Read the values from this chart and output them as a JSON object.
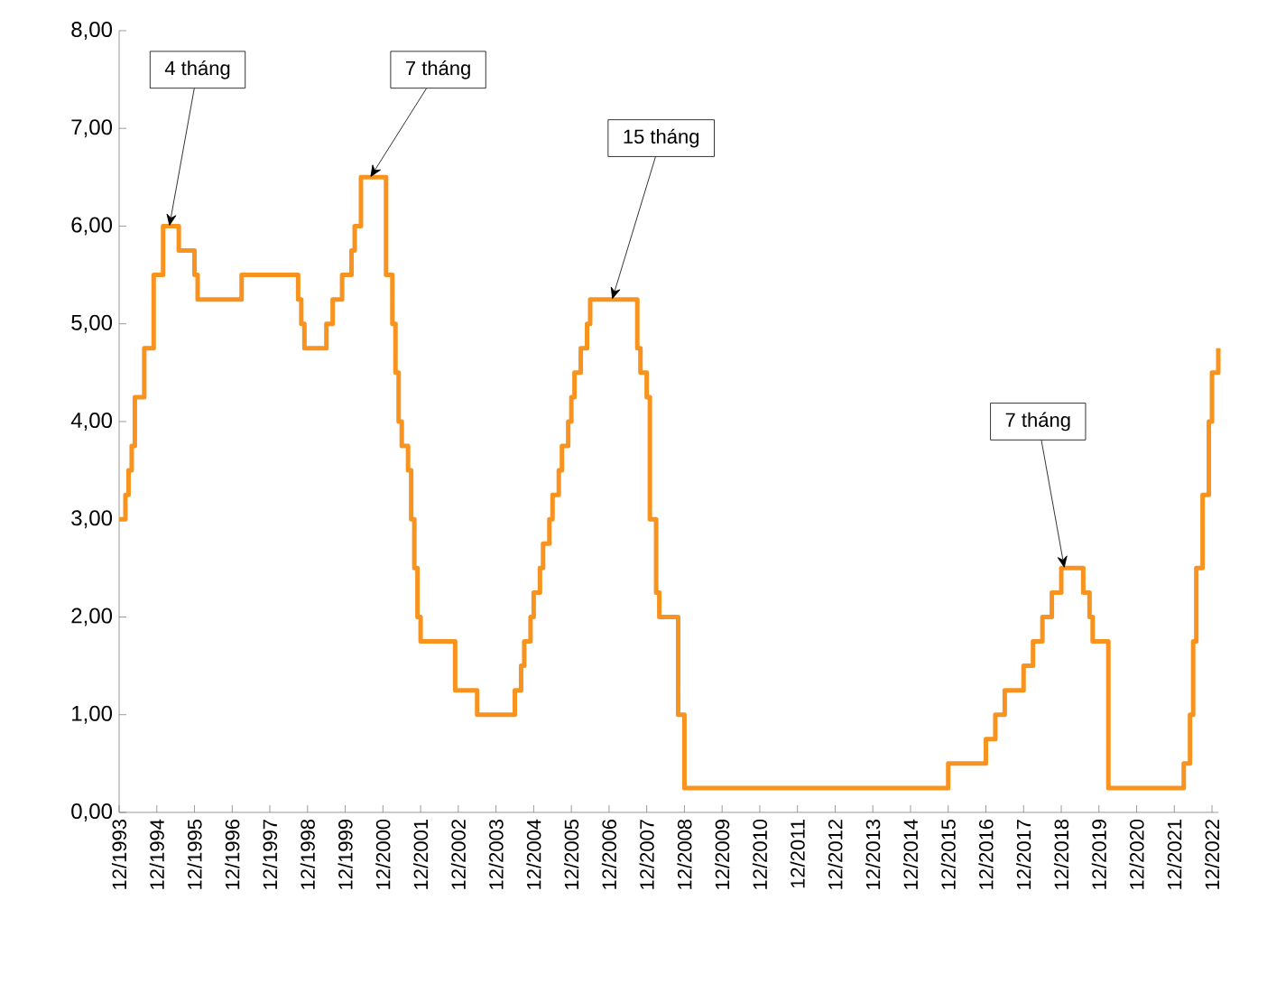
{
  "chart_data": {
    "type": "step",
    "color": "#f7931e",
    "x": [
      "1993-12",
      "1994-02",
      "1994-03",
      "1994-04",
      "1994-05",
      "1994-08",
      "1994-11",
      "1995-02",
      "1995-07",
      "1995-12",
      "1996-01",
      "1997-03",
      "1998-09",
      "1998-10",
      "1998-11",
      "1999-06",
      "1999-08",
      "1999-11",
      "2000-02",
      "2000-03",
      "2000-05",
      "2001-01",
      "2001-03",
      "2001-04",
      "2001-05",
      "2001-06",
      "2001-08",
      "2001-09",
      "2001-10",
      "2001-11",
      "2001-12",
      "2002-11",
      "2003-06",
      "2004-06",
      "2004-08",
      "2004-09",
      "2004-11",
      "2004-12",
      "2005-02",
      "2005-03",
      "2005-05",
      "2005-06",
      "2005-08",
      "2005-09",
      "2005-11",
      "2005-12",
      "2006-01",
      "2006-03",
      "2006-05",
      "2006-06",
      "2007-09",
      "2007-10",
      "2007-12",
      "2008-01",
      "2008-03",
      "2008-04",
      "2008-10",
      "2008-12",
      "2015-12",
      "2016-12",
      "2017-03",
      "2017-06",
      "2017-12",
      "2018-03",
      "2018-06",
      "2018-09",
      "2018-12",
      "2019-07",
      "2019-09",
      "2019-10",
      "2020-03",
      "2022-03",
      "2022-05",
      "2022-06",
      "2022-07",
      "2022-09",
      "2022-11",
      "2022-12",
      "2023-02"
    ],
    "values": [
      3.0,
      3.25,
      3.5,
      3.75,
      4.25,
      4.75,
      5.5,
      6.0,
      5.75,
      5.5,
      5.25,
      5.5,
      5.25,
      5.0,
      4.75,
      5.0,
      5.25,
      5.5,
      5.75,
      6.0,
      6.5,
      5.5,
      5.0,
      4.5,
      4.0,
      3.75,
      3.5,
      3.0,
      2.5,
      2.0,
      1.75,
      1.25,
      1.0,
      1.25,
      1.5,
      1.75,
      2.0,
      2.25,
      2.5,
      2.75,
      3.0,
      3.25,
      3.5,
      3.75,
      4.0,
      4.25,
      4.5,
      4.75,
      5.0,
      5.25,
      4.75,
      4.5,
      4.25,
      3.0,
      2.25,
      2.0,
      1.0,
      0.25,
      0.5,
      0.75,
      1.0,
      1.25,
      1.5,
      1.75,
      2.0,
      2.25,
      2.5,
      2.25,
      2.0,
      1.75,
      0.25,
      0.5,
      1.0,
      1.75,
      2.5,
      3.25,
      4.0,
      4.5,
      4.75
    ],
    "xlim": [
      "1993-12",
      "2023-02"
    ],
    "xticks": [
      {
        "value": "1993-12",
        "label": "12/1993"
      },
      {
        "value": "1994-12",
        "label": "12/1994"
      },
      {
        "value": "1995-12",
        "label": "12/1995"
      },
      {
        "value": "1996-12",
        "label": "12/1996"
      },
      {
        "value": "1997-12",
        "label": "12/1997"
      },
      {
        "value": "1998-12",
        "label": "12/1998"
      },
      {
        "value": "1999-12",
        "label": "12/1999"
      },
      {
        "value": "2000-12",
        "label": "12/2000"
      },
      {
        "value": "2001-12",
        "label": "12/2001"
      },
      {
        "value": "2002-12",
        "label": "12/2002"
      },
      {
        "value": "2003-12",
        "label": "12/2003"
      },
      {
        "value": "2004-12",
        "label": "12/2004"
      },
      {
        "value": "2005-12",
        "label": "12/2005"
      },
      {
        "value": "2006-12",
        "label": "12/2006"
      },
      {
        "value": "2007-12",
        "label": "12/2007"
      },
      {
        "value": "2008-12",
        "label": "12/2008"
      },
      {
        "value": "2009-12",
        "label": "12/2009"
      },
      {
        "value": "2010-12",
        "label": "12/2010"
      },
      {
        "value": "2011-12",
        "label": "12/2011"
      },
      {
        "value": "2012-12",
        "label": "12/2012"
      },
      {
        "value": "2013-12",
        "label": "12/2013"
      },
      {
        "value": "2014-12",
        "label": "12/2014"
      },
      {
        "value": "2015-12",
        "label": "12/2015"
      },
      {
        "value": "2016-12",
        "label": "12/2016"
      },
      {
        "value": "2017-12",
        "label": "12/2017"
      },
      {
        "value": "2018-12",
        "label": "12/2018"
      },
      {
        "value": "2019-12",
        "label": "12/2019"
      },
      {
        "value": "2020-12",
        "label": "12/2020"
      },
      {
        "value": "2021-12",
        "label": "12/2021"
      },
      {
        "value": "2022-12",
        "label": "12/2022"
      }
    ],
    "ylim": [
      0,
      8
    ],
    "yticks": [
      {
        "value": 0,
        "label": "0,00"
      },
      {
        "value": 1,
        "label": "1,00"
      },
      {
        "value": 2,
        "label": "2,00"
      },
      {
        "value": 3,
        "label": "3,00"
      },
      {
        "value": 4,
        "label": "4,00"
      },
      {
        "value": 5,
        "label": "5,00"
      },
      {
        "value": 6,
        "label": "6,00"
      },
      {
        "value": 7,
        "label": "7,00"
      },
      {
        "value": 8,
        "label": "8,00"
      }
    ],
    "annotations": [
      {
        "text": "4 tháng",
        "x": "1995-04",
        "y": 6.0
      },
      {
        "text": "7 tháng",
        "x": "2000-08",
        "y": 6.5
      },
      {
        "text": "15 tháng",
        "x": "2007-01",
        "y": 5.25
      },
      {
        "text": "7 tháng",
        "x": "2019-01",
        "y": 2.5
      }
    ]
  }
}
